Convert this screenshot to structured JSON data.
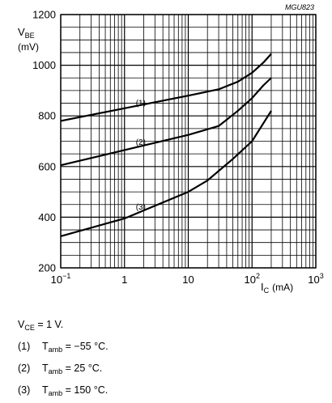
{
  "figure_id": "MGU823",
  "chart_data": {
    "type": "line",
    "title": "",
    "y_axis": {
      "label": "V",
      "label_sub": "BE",
      "unit": "(mV)",
      "scale": "linear",
      "range": [
        200,
        1200
      ],
      "ticks": [
        "200",
        "400",
        "600",
        "800",
        "1000",
        "1200"
      ],
      "tick_values": [
        200,
        400,
        600,
        800,
        1000,
        1200
      ]
    },
    "x_axis": {
      "label": "I",
      "label_sub": "C",
      "unit": "(mA)",
      "scale": "log",
      "range": [
        0.1,
        1000
      ],
      "ticks": [
        {
          "base": "10",
          "exp": "−1",
          "value": 0.1
        },
        {
          "base": "1",
          "exp": "",
          "value": 1
        },
        {
          "base": "10",
          "exp": "",
          "value": 10
        },
        {
          "base": "10",
          "exp": "2",
          "value": 100
        },
        {
          "base": "10",
          "exp": "3",
          "value": 1000
        }
      ]
    },
    "grid": true,
    "series": [
      {
        "name": "(1)",
        "x": [
          0.1,
          1,
          10,
          30,
          60,
          100,
          150,
          200
        ],
        "y": [
          780,
          830,
          880,
          905,
          935,
          970,
          1010,
          1045
        ]
      },
      {
        "name": "(2)",
        "x": [
          0.1,
          1,
          10,
          30,
          60,
          100,
          150,
          200
        ],
        "y": [
          605,
          665,
          725,
          760,
          820,
          870,
          920,
          950
        ]
      },
      {
        "name": "(3)",
        "x": [
          0.1,
          1,
          10,
          20,
          50,
          100,
          150,
          200
        ],
        "y": [
          325,
          395,
          500,
          545,
          630,
          700,
          770,
          820
        ]
      }
    ],
    "curve_labels": [
      {
        "text": "(1)",
        "x": 1.8,
        "y": 840
      },
      {
        "text": "(2)",
        "x": 1.8,
        "y": 685
      },
      {
        "text": "(3)",
        "x": 1.8,
        "y": 430
      }
    ]
  },
  "conditions": {
    "vce": {
      "symbol": "V",
      "sub": "CE",
      "value": " = 1 V."
    },
    "items": [
      {
        "num": "(1)",
        "symbol": "T",
        "sub": "amb",
        "value": " = −55 °C."
      },
      {
        "num": "(2)",
        "symbol": "T",
        "sub": "amb",
        "value": " = 25 °C."
      },
      {
        "num": "(3)",
        "symbol": "T",
        "sub": "amb",
        "value": " = 150 °C."
      }
    ]
  }
}
